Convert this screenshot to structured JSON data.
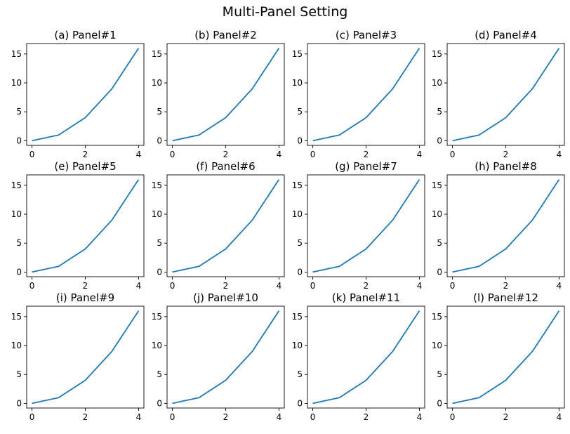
{
  "figure": {
    "title": "Multi-Panel Setting",
    "line_color": "#1f77b4"
  },
  "chart_data": [
    {
      "type": "line",
      "title": "(a) Panel#1",
      "x": [
        0,
        1,
        2,
        3,
        4
      ],
      "y": [
        0,
        1,
        4,
        9,
        16
      ],
      "xticks": [
        0,
        2,
        4
      ],
      "yticks": [
        0,
        5,
        10,
        15
      ],
      "xlim": [
        -0.2,
        4.2
      ],
      "ylim": [
        -0.8,
        16.8
      ],
      "grid": false
    },
    {
      "type": "line",
      "title": "(b) Panel#2",
      "x": [
        0,
        1,
        2,
        3,
        4
      ],
      "y": [
        0,
        1,
        4,
        9,
        16
      ],
      "xticks": [
        0,
        2,
        4
      ],
      "yticks": [
        0,
        5,
        10,
        15
      ],
      "xlim": [
        -0.2,
        4.2
      ],
      "ylim": [
        -0.8,
        16.8
      ],
      "grid": false
    },
    {
      "type": "line",
      "title": "(c) Panel#3",
      "x": [
        0,
        1,
        2,
        3,
        4
      ],
      "y": [
        0,
        1,
        4,
        9,
        16
      ],
      "xticks": [
        0,
        2,
        4
      ],
      "yticks": [
        0,
        5,
        10,
        15
      ],
      "xlim": [
        -0.2,
        4.2
      ],
      "ylim": [
        -0.8,
        16.8
      ],
      "grid": false
    },
    {
      "type": "line",
      "title": "(d) Panel#4",
      "x": [
        0,
        1,
        2,
        3,
        4
      ],
      "y": [
        0,
        1,
        4,
        9,
        16
      ],
      "xticks": [
        0,
        2,
        4
      ],
      "yticks": [
        0,
        5,
        10,
        15
      ],
      "xlim": [
        -0.2,
        4.2
      ],
      "ylim": [
        -0.8,
        16.8
      ],
      "grid": false
    },
    {
      "type": "line",
      "title": "(e) Panel#5",
      "x": [
        0,
        1,
        2,
        3,
        4
      ],
      "y": [
        0,
        1,
        4,
        9,
        16
      ],
      "xticks": [
        0,
        2,
        4
      ],
      "yticks": [
        0,
        5,
        10,
        15
      ],
      "xlim": [
        -0.2,
        4.2
      ],
      "ylim": [
        -0.8,
        16.8
      ],
      "grid": false
    },
    {
      "type": "line",
      "title": "(f) Panel#6",
      "x": [
        0,
        1,
        2,
        3,
        4
      ],
      "y": [
        0,
        1,
        4,
        9,
        16
      ],
      "xticks": [
        0,
        2,
        4
      ],
      "yticks": [
        0,
        5,
        10,
        15
      ],
      "xlim": [
        -0.2,
        4.2
      ],
      "ylim": [
        -0.8,
        16.8
      ],
      "grid": false
    },
    {
      "type": "line",
      "title": "(g) Panel#7",
      "x": [
        0,
        1,
        2,
        3,
        4
      ],
      "y": [
        0,
        1,
        4,
        9,
        16
      ],
      "xticks": [
        0,
        2,
        4
      ],
      "yticks": [
        0,
        5,
        10,
        15
      ],
      "xlim": [
        -0.2,
        4.2
      ],
      "ylim": [
        -0.8,
        16.8
      ],
      "grid": false
    },
    {
      "type": "line",
      "title": "(h) Panel#8",
      "x": [
        0,
        1,
        2,
        3,
        4
      ],
      "y": [
        0,
        1,
        4,
        9,
        16
      ],
      "xticks": [
        0,
        2,
        4
      ],
      "yticks": [
        0,
        5,
        10,
        15
      ],
      "xlim": [
        -0.2,
        4.2
      ],
      "ylim": [
        -0.8,
        16.8
      ],
      "grid": false
    },
    {
      "type": "line",
      "title": "(i) Panel#9",
      "x": [
        0,
        1,
        2,
        3,
        4
      ],
      "y": [
        0,
        1,
        4,
        9,
        16
      ],
      "xticks": [
        0,
        2,
        4
      ],
      "yticks": [
        0,
        5,
        10,
        15
      ],
      "xlim": [
        -0.2,
        4.2
      ],
      "ylim": [
        -0.8,
        16.8
      ],
      "grid": false
    },
    {
      "type": "line",
      "title": "(j) Panel#10",
      "x": [
        0,
        1,
        2,
        3,
        4
      ],
      "y": [
        0,
        1,
        4,
        9,
        16
      ],
      "xticks": [
        0,
        2,
        4
      ],
      "yticks": [
        0,
        5,
        10,
        15
      ],
      "xlim": [
        -0.2,
        4.2
      ],
      "ylim": [
        -0.8,
        16.8
      ],
      "grid": false
    },
    {
      "type": "line",
      "title": "(k) Panel#11",
      "x": [
        0,
        1,
        2,
        3,
        4
      ],
      "y": [
        0,
        1,
        4,
        9,
        16
      ],
      "xticks": [
        0,
        2,
        4
      ],
      "yticks": [
        0,
        5,
        10,
        15
      ],
      "xlim": [
        -0.2,
        4.2
      ],
      "ylim": [
        -0.8,
        16.8
      ],
      "grid": false
    },
    {
      "type": "line",
      "title": "(l) Panel#12",
      "x": [
        0,
        1,
        2,
        3,
        4
      ],
      "y": [
        0,
        1,
        4,
        9,
        16
      ],
      "xticks": [
        0,
        2,
        4
      ],
      "yticks": [
        0,
        5,
        10,
        15
      ],
      "xlim": [
        -0.2,
        4.2
      ],
      "ylim": [
        -0.8,
        16.8
      ],
      "grid": false
    }
  ]
}
